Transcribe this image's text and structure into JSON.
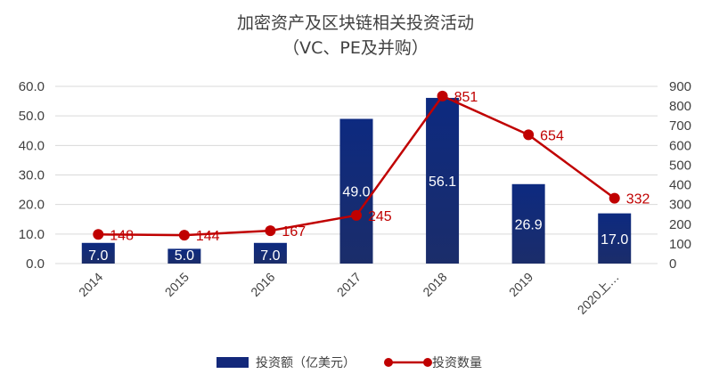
{
  "chart_data": {
    "type": "bar+line",
    "title_line1": "加密资产及区块链相关投资活动",
    "title_line2": "（VC、PE及并购）",
    "categories": [
      "2014",
      "2015",
      "2016",
      "2017",
      "2018",
      "2019",
      "2020上…"
    ],
    "series": [
      {
        "name": "投资额（亿美元）",
        "type": "bar",
        "axis": "left",
        "values": [
          7.0,
          5.0,
          7.0,
          49.0,
          56.1,
          26.9,
          17.0
        ],
        "labels": [
          "7.0",
          "5.0",
          "7.0",
          "49.0",
          "56.1",
          "26.9",
          "17.0"
        ]
      },
      {
        "name": "投资数量",
        "type": "line",
        "axis": "right",
        "values": [
          148,
          144,
          167,
          245,
          851,
          654,
          332
        ],
        "labels": [
          "148",
          "144",
          "167",
          "245",
          "851",
          "654",
          "332"
        ]
      }
    ],
    "y_left": {
      "min": 0,
      "max": 60,
      "ticks": [
        "0.0",
        "10.0",
        "20.0",
        "30.0",
        "40.0",
        "50.0",
        "60.0"
      ]
    },
    "y_right": {
      "min": 0,
      "max": 900,
      "ticks": [
        "0",
        "100",
        "200",
        "300",
        "400",
        "500",
        "600",
        "700",
        "800",
        "900"
      ]
    },
    "grid": true,
    "legend_position": "bottom",
    "colors": {
      "bar": "#13287a",
      "bar_light": "#1f3a93",
      "line": "#c00000",
      "grid": "#d9d9d9",
      "text": "#404040"
    }
  }
}
